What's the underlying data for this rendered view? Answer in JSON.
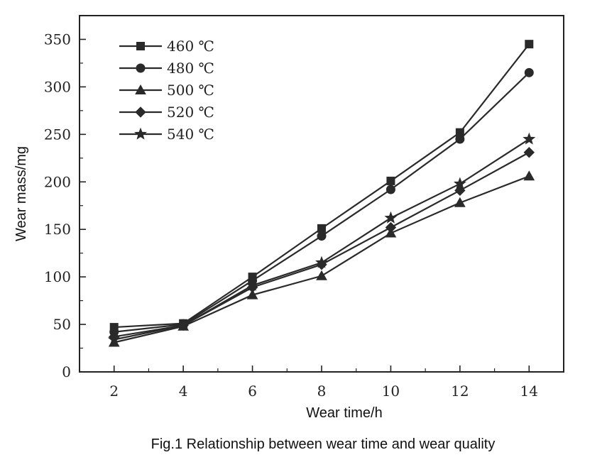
{
  "chart_data": {
    "type": "line",
    "title": "",
    "caption": "Fig.1 Relationship between wear time and wear quality",
    "xlabel": "Wear time/h",
    "ylabel": "Wear mass/mg",
    "xlim": [
      1,
      15
    ],
    "ylim": [
      0,
      375
    ],
    "x_ticks": [
      2,
      4,
      6,
      8,
      10,
      12,
      14
    ],
    "y_ticks": [
      0,
      50,
      100,
      150,
      200,
      250,
      300,
      350
    ],
    "grid": false,
    "legend_position": "top-left",
    "x": [
      2,
      4,
      6,
      8,
      10,
      12,
      14
    ],
    "series": [
      {
        "name": "460 ℃",
        "marker": "square",
        "values": [
          47,
          51,
          100,
          151,
          201,
          252,
          345
        ]
      },
      {
        "name": "480 ℃",
        "marker": "circle",
        "values": [
          42,
          50,
          96,
          143,
          192,
          245,
          315
        ]
      },
      {
        "name": "500 ℃",
        "marker": "triangle",
        "values": [
          31,
          48,
          81,
          101,
          146,
          178,
          206
        ]
      },
      {
        "name": "520 ℃",
        "marker": "diamond",
        "values": [
          37,
          49,
          89,
          113,
          152,
          191,
          231
        ]
      },
      {
        "name": "540 ℃",
        "marker": "star",
        "values": [
          34,
          49,
          91,
          115,
          162,
          198,
          245
        ]
      }
    ],
    "line_color": "#2a2a2a"
  }
}
